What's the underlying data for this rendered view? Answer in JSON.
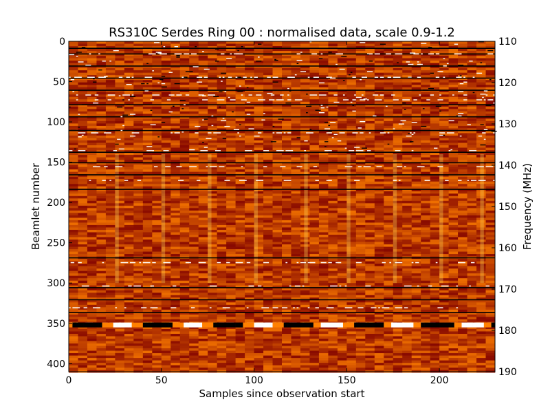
{
  "chart_data": {
    "type": "heatmap",
    "title": "RS310C Serdes Ring 00 : normalised data, scale 0.9-1.2",
    "xlabel": "Samples since observation start",
    "ylabel": "Beamlet number",
    "y2label": "Frequency (MHz)",
    "xlim": [
      0,
      230
    ],
    "ylim": [
      410,
      0
    ],
    "y2lim": [
      190,
      110
    ],
    "x_ticks": [
      0,
      50,
      100,
      150,
      200
    ],
    "y_ticks": [
      0,
      50,
      100,
      150,
      200,
      250,
      300,
      350,
      400
    ],
    "y2_ticks": [
      110,
      120,
      130,
      140,
      150,
      160,
      170,
      180,
      190
    ],
    "color_scale": [
      0.9,
      1.2
    ],
    "colormap": "afmhot",
    "grid": false,
    "legend": "none",
    "n_samples": 230,
    "n_beamlets": 410,
    "dark_rows": [
      8,
      15,
      30,
      45,
      60,
      78,
      93,
      110,
      137,
      150,
      165,
      183,
      268,
      305,
      320,
      336
    ],
    "bright_rows": [
      15,
      44,
      66,
      72,
      113,
      135,
      155,
      172,
      274,
      303,
      330,
      349
    ],
    "band_row": 352,
    "colors": {
      "background": "#a83c00",
      "dark": "#000000",
      "bright": "#ffffff"
    }
  }
}
